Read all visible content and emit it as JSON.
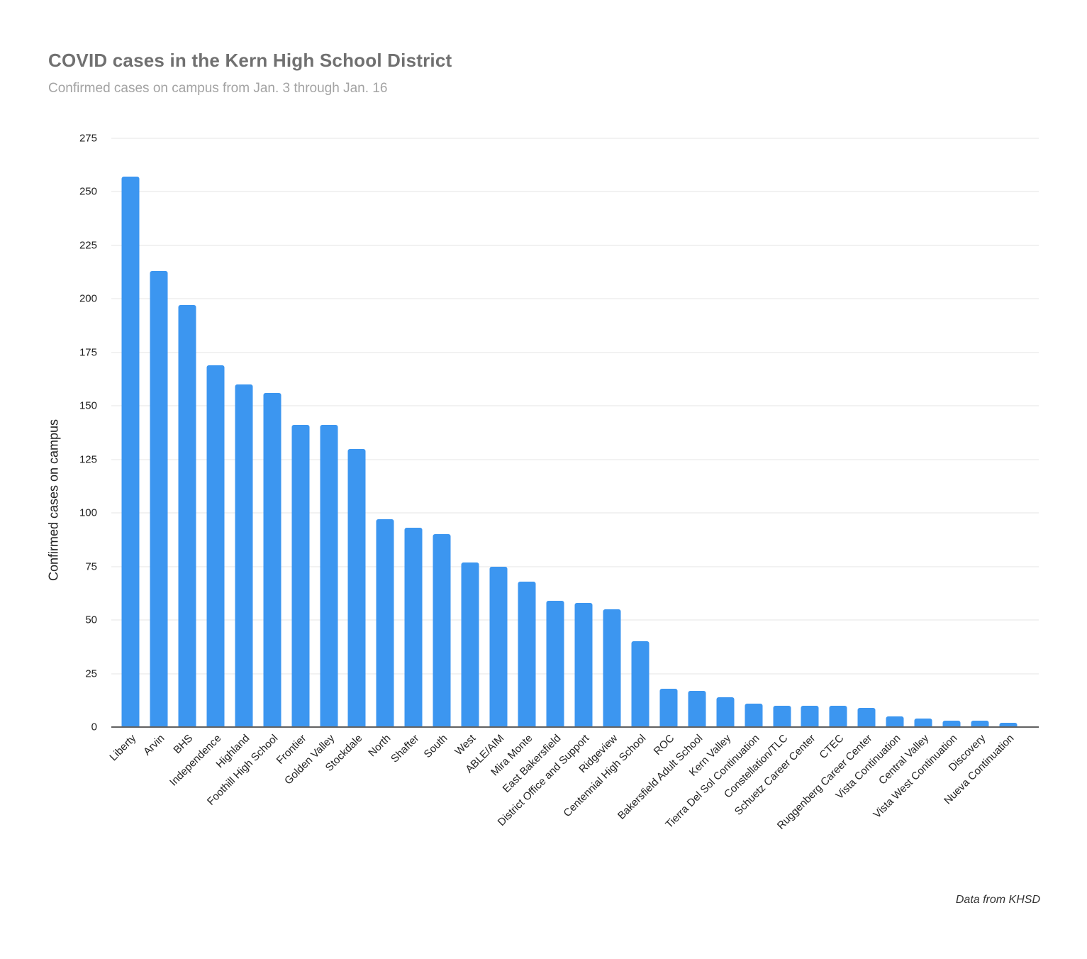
{
  "colors": {
    "bar": "#3C96F0",
    "gridline": "#E6E6E6",
    "baseline": "#616161",
    "title_text": "#707070",
    "subtitle_text": "#A3A3A3",
    "axis_text": "#222222"
  },
  "chart_data": {
    "type": "bar",
    "title": "COVID cases in the Kern High School District",
    "subtitle": "Confirmed cases on campus from Jan. 3 through Jan. 16",
    "xlabel": "",
    "ylabel": "Confirmed cases on campus",
    "source_note": "Data from KHSD",
    "ylim": [
      0,
      275
    ],
    "ytick_step": 25,
    "grid": true,
    "legend": false,
    "bar_color": "#3C96F0",
    "categories": [
      "Liberty",
      "Arvin",
      "BHS",
      "Independence",
      "Highland",
      "Foothill High School",
      "Frontier",
      "Golden Valley",
      "Stockdale",
      "North",
      "Shafter",
      "South",
      "West",
      "ABLE/AIM",
      "Mira Monte",
      "East Bakersfield",
      "District Office and Support",
      "Ridgeview",
      "Centennial High School",
      "ROC",
      "Bakersfield Adult School",
      "Kern Valley",
      "Tierra Del Sol Continuation",
      "Constellation/TLC",
      "Schuetz Career Center",
      "CTEC",
      "Ruggenberg Career Center",
      "Vista Continuation",
      "Central Valley",
      "Vista West Continuation",
      "Discovery",
      "Nueva Continuation"
    ],
    "values": [
      257,
      213,
      197,
      169,
      160,
      156,
      141,
      141,
      130,
      97,
      93,
      90,
      77,
      75,
      68,
      59,
      58,
      55,
      40,
      18,
      17,
      14,
      11,
      10,
      10,
      10,
      9,
      5,
      4,
      3,
      3,
      2
    ]
  }
}
